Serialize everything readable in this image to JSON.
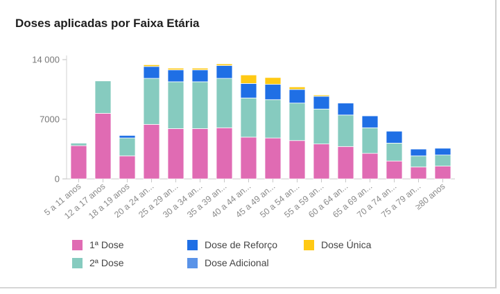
{
  "colors": {
    "dose1": "#e06bb3",
    "dose2": "#86cbbf",
    "reforco": "#1f6fe5",
    "unica": "#ffc914",
    "adicional": "#5a93e8"
  },
  "chart_data": {
    "type": "bar",
    "stacked": true,
    "title": "Doses aplicadas por Faixa Etária",
    "xlabel": "",
    "ylabel": "",
    "ylim": [
      0,
      14000
    ],
    "yticks": [
      0,
      7000,
      14000
    ],
    "ytick_labels": [
      "0",
      "7000",
      "14 000"
    ],
    "grid": false,
    "legend_position": "bottom",
    "categories": [
      "5 a 11 anos",
      "12 a 17 anos",
      "18 a 19 anos",
      "20 a 24 an...",
      "25 a 29 an...",
      "30 a 34 an...",
      "35 a 39 an...",
      "40 a 44 an...",
      "45 a 49 an...",
      "50 a 54 an...",
      "55 a 59 an...",
      "60 a 64 an...",
      "65 a 69 an...",
      "70 a 74 an...",
      "75 a 79 an...",
      "≥80 anos"
    ],
    "series": [
      {
        "name": "1ª Dose",
        "color": "#e06bb3",
        "values": [
          3900,
          7700,
          2700,
          6400,
          5900,
          5900,
          6000,
          4900,
          4800,
          4500,
          4100,
          3800,
          3000,
          2100,
          1400,
          1500
        ]
      },
      {
        "name": "2ª Dose",
        "color": "#86cbbf",
        "values": [
          300,
          3800,
          2100,
          5400,
          5500,
          5500,
          5800,
          4600,
          4500,
          4400,
          4100,
          3700,
          3000,
          2100,
          1300,
          1300
        ]
      },
      {
        "name": "Dose de Reforço",
        "color": "#1f6fe5",
        "values": [
          0,
          0,
          300,
          1400,
          1400,
          1400,
          1500,
          1700,
          1800,
          1600,
          1500,
          1400,
          1400,
          1400,
          800,
          800
        ]
      },
      {
        "name": "Dose Adicional",
        "color": "#5a93e8",
        "values": [
          0,
          0,
          0,
          0,
          0,
          0,
          0,
          0,
          0,
          0,
          0,
          0,
          0,
          0,
          0,
          0
        ]
      },
      {
        "name": "Dose Única",
        "color": "#ffc914",
        "values": [
          0,
          0,
          0,
          200,
          200,
          200,
          200,
          1000,
          800,
          300,
          150,
          0,
          0,
          0,
          0,
          0
        ]
      }
    ]
  },
  "legend": [
    {
      "label": "1ª Dose",
      "color": "#e06bb3"
    },
    {
      "label": "2ª Dose",
      "color": "#86cbbf"
    },
    {
      "label": "Dose de Reforço",
      "color": "#1f6fe5"
    },
    {
      "label": "Dose Adicional",
      "color": "#5a93e8"
    },
    {
      "label": "Dose Única",
      "color": "#ffc914"
    }
  ]
}
